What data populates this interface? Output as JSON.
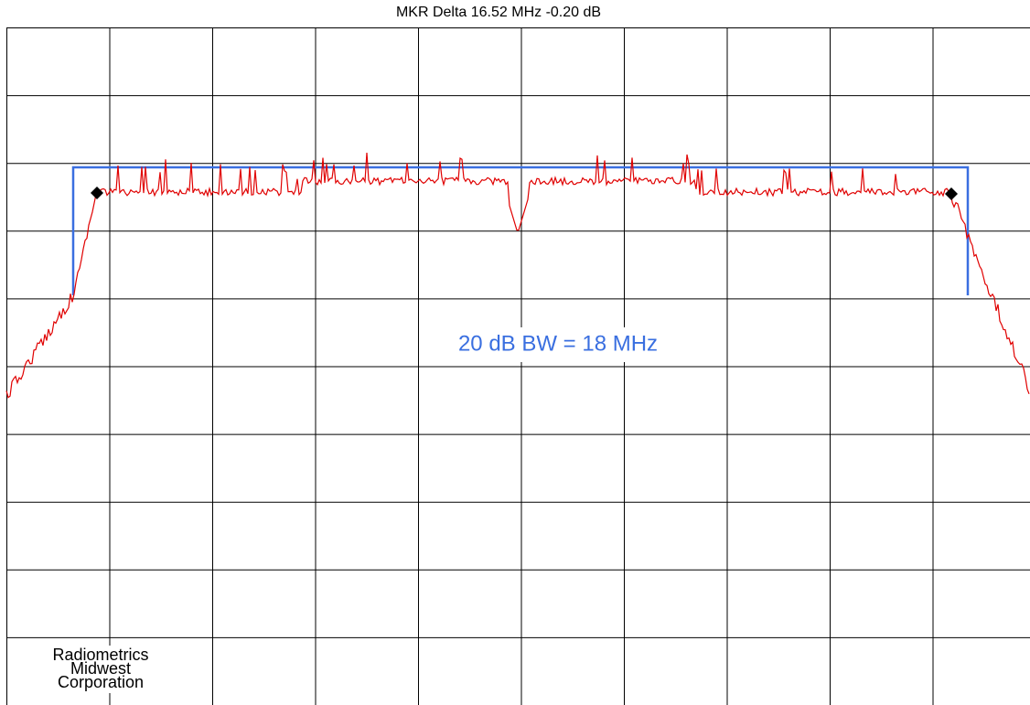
{
  "header": {
    "title": "MKR Delta  16.52 MHz  -0.20 dB"
  },
  "annotation": "20 dB BW = 18 MHz",
  "logo": {
    "lines": [
      "Radiometrics",
      "Midwest",
      "Corporation"
    ]
  }
}
